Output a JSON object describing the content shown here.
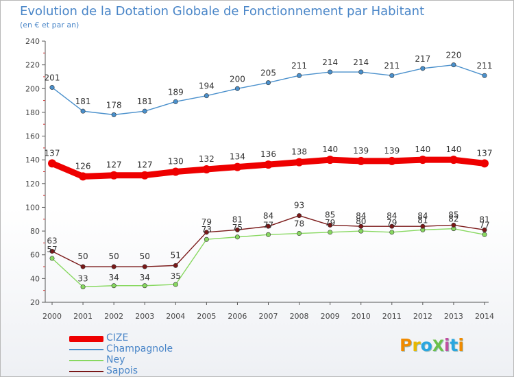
{
  "title": "Evolution de la Dotation Globale de Fonctionnement par Habitant",
  "subtitle": "(en € et par an)",
  "logo": {
    "text": "ProXiti",
    "colors": [
      "#f08a00",
      "#e8b800",
      "#2aa6e0",
      "#6cc04a",
      "#c04fa0",
      "#2aa6e0",
      "#f08a00"
    ]
  },
  "chart_data": {
    "type": "line",
    "title": "Evolution de la Dotation Globale de Fonctionnement par Habitant",
    "ylabel": "(en € et par an)",
    "ylim": [
      20,
      240
    ],
    "yticks": [
      20,
      40,
      60,
      80,
      100,
      120,
      140,
      160,
      180,
      200,
      220,
      240
    ],
    "grid": false,
    "legend": "bottom-left",
    "categories": [
      "2000",
      "2001",
      "2002",
      "2003",
      "2004",
      "2005",
      "2006",
      "2007",
      "2008",
      "2009",
      "2010",
      "2011",
      "2012",
      "2013",
      "2014"
    ],
    "series": [
      {
        "name": "CIZE",
        "color": "#ee0000",
        "values": [
          137,
          126,
          127,
          127,
          130,
          132,
          134,
          136,
          138,
          140,
          139,
          139,
          140,
          140,
          137
        ]
      },
      {
        "name": "Champagnole",
        "color": "#4a90cc",
        "values": [
          201,
          181,
          178,
          181,
          189,
          194,
          200,
          205,
          211,
          214,
          214,
          211,
          217,
          220,
          211
        ]
      },
      {
        "name": "Ney",
        "color": "#88d860",
        "values": [
          57,
          33,
          34,
          34,
          35,
          73,
          75,
          77,
          78,
          79,
          80,
          79,
          81,
          82,
          77
        ]
      },
      {
        "name": "Sapois",
        "color": "#7a1818",
        "values": [
          63,
          50,
          50,
          50,
          51,
          79,
          81,
          84,
          93,
          85,
          84,
          84,
          84,
          85,
          81
        ]
      }
    ]
  }
}
